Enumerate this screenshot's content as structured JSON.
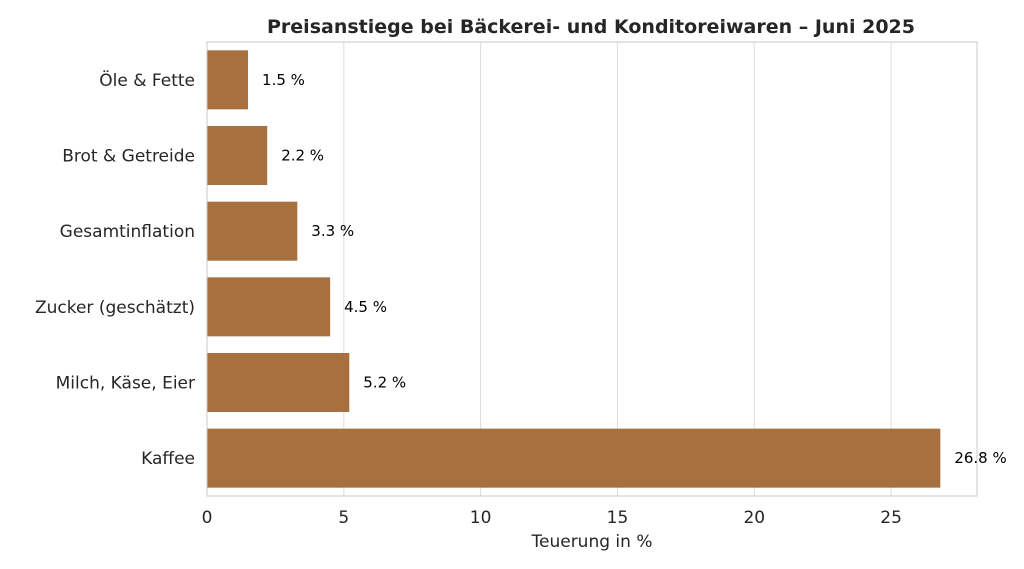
{
  "chart_data": {
    "type": "bar",
    "orientation": "horizontal",
    "title": "Preisanstiege bei Bäckerei- und Konditoreiwaren – Juni 2025",
    "xlabel": "Teuerung in %",
    "ylabel": "",
    "categories": [
      "Öle & Fette",
      "Brot & Getreide",
      "Gesamtinflation",
      "Zucker (geschätzt)",
      "Milch, Käse, Eier",
      "Kaffee"
    ],
    "values": [
      1.5,
      2.2,
      3.3,
      4.5,
      5.2,
      26.8
    ],
    "data_labels": [
      "1.5 %",
      "2.2 %",
      "3.3 %",
      "4.5 %",
      "5.2 %",
      "26.8 %"
    ],
    "xticks": [
      0,
      5,
      10,
      15,
      20,
      25
    ],
    "xlim": [
      0,
      28.14
    ],
    "grid": true,
    "bar_color": "#a8703f"
  }
}
